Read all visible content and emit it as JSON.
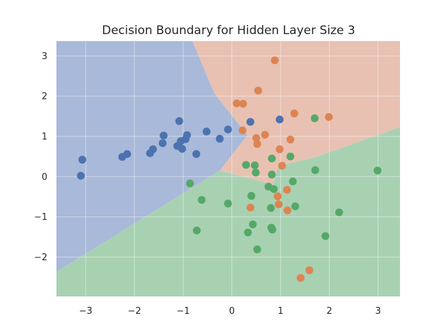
{
  "chart_data": {
    "type": "scatter",
    "title": "Decision Boundary for Hidden Layer Size 3",
    "xlabel": "",
    "ylabel": "",
    "xlim": [
      -3.6,
      3.45
    ],
    "ylim": [
      -2.98,
      3.37
    ],
    "x_ticks": [
      -3,
      -2,
      -1,
      0,
      1,
      2,
      3
    ],
    "y_ticks": [
      3,
      2,
      1,
      0,
      -1,
      -2
    ],
    "x_tick_labels": [
      "−3",
      "−2",
      "−1",
      "0",
      "1",
      "2",
      "3"
    ],
    "y_tick_labels": [
      "3",
      "2",
      "1",
      "0",
      "−1",
      "−2"
    ],
    "grid": true,
    "regions": [
      {
        "name": "class 0 region",
        "color": "#a9b9d9",
        "polygon": [
          [
            -3.6,
            3.37
          ],
          [
            -0.81,
            3.37
          ],
          [
            -0.36,
            2.07
          ],
          [
            0.32,
            1.03
          ],
          [
            -0.25,
            0.15
          ],
          [
            -3.6,
            -2.37
          ]
        ]
      },
      {
        "name": "class 1 region",
        "color": "#e8c1b2",
        "polygon": [
          [
            -0.81,
            3.37
          ],
          [
            3.45,
            3.37
          ],
          [
            3.45,
            1.23
          ],
          [
            1.75,
            0.5
          ],
          [
            0.95,
            0.25
          ],
          [
            0.85,
            -0.2
          ],
          [
            -0.25,
            0.15
          ],
          [
            0.32,
            1.03
          ],
          [
            -0.36,
            2.07
          ]
        ]
      },
      {
        "name": "class 2 region",
        "color": "#a8d1b2",
        "polygon": [
          [
            -3.6,
            -2.37
          ],
          [
            -0.25,
            0.15
          ],
          [
            0.85,
            -0.2
          ],
          [
            0.95,
            0.25
          ],
          [
            1.75,
            0.5
          ],
          [
            3.45,
            1.23
          ],
          [
            3.45,
            -2.98
          ],
          [
            -3.6,
            -2.98
          ]
        ]
      }
    ],
    "series": [
      {
        "color": "#4c72b0",
        "points": [
          [
            -3.07,
            0.42
          ],
          [
            -3.1,
            0.02
          ],
          [
            -2.25,
            0.49
          ],
          [
            -2.15,
            0.56
          ],
          [
            -1.68,
            0.58
          ],
          [
            -1.62,
            0.68
          ],
          [
            -1.42,
            0.83
          ],
          [
            -1.4,
            1.02
          ],
          [
            -1.12,
            0.76
          ],
          [
            -1.08,
            1.38
          ],
          [
            -1.05,
            0.88
          ],
          [
            -1.02,
            0.69
          ],
          [
            -0.95,
            0.93
          ],
          [
            -0.92,
            1.03
          ],
          [
            -0.73,
            0.56
          ],
          [
            -0.52,
            1.12
          ],
          [
            -0.25,
            0.94
          ],
          [
            -0.08,
            1.17
          ],
          [
            0.38,
            1.36
          ],
          [
            0.98,
            1.42
          ]
        ]
      },
      {
        "color": "#dd8452",
        "points": [
          [
            0.1,
            1.82
          ],
          [
            0.23,
            1.81
          ],
          [
            0.22,
            1.15
          ],
          [
            0.54,
            2.14
          ],
          [
            0.5,
            0.96
          ],
          [
            0.52,
            0.81
          ],
          [
            0.68,
            1.04
          ],
          [
            0.88,
            2.89
          ],
          [
            0.98,
            0.68
          ],
          [
            1.03,
            0.27
          ],
          [
            1.2,
            0.92
          ],
          [
            1.28,
            1.57
          ],
          [
            1.99,
            1.48
          ],
          [
            0.38,
            -0.77
          ],
          [
            0.94,
            -0.49
          ],
          [
            0.96,
            -0.69
          ],
          [
            1.13,
            -0.33
          ],
          [
            1.14,
            -0.84
          ],
          [
            1.41,
            -2.52
          ],
          [
            1.59,
            -2.33
          ]
        ]
      },
      {
        "color": "#55a868",
        "points": [
          [
            -0.86,
            -0.17
          ],
          [
            -0.62,
            -0.58
          ],
          [
            -0.72,
            -1.34
          ],
          [
            -0.08,
            -0.67
          ],
          [
            0.29,
            0.29
          ],
          [
            0.47,
            0.28
          ],
          [
            0.49,
            0.1
          ],
          [
            0.4,
            -0.48
          ],
          [
            0.43,
            -1.19
          ],
          [
            0.33,
            -1.39
          ],
          [
            0.52,
            -1.81
          ],
          [
            0.75,
            -0.25
          ],
          [
            0.82,
            0.45
          ],
          [
            0.82,
            0.05
          ],
          [
            0.8,
            -0.78
          ],
          [
            0.81,
            -1.27
          ],
          [
            0.83,
            -1.32
          ],
          [
            0.86,
            -0.31
          ],
          [
            1.2,
            0.5
          ],
          [
            1.25,
            -0.12
          ],
          [
            1.3,
            -0.74
          ],
          [
            1.7,
            1.45
          ],
          [
            1.71,
            0.16
          ],
          [
            1.92,
            -1.48
          ],
          [
            2.2,
            -0.89
          ],
          [
            2.99,
            0.15
          ]
        ]
      }
    ]
  }
}
